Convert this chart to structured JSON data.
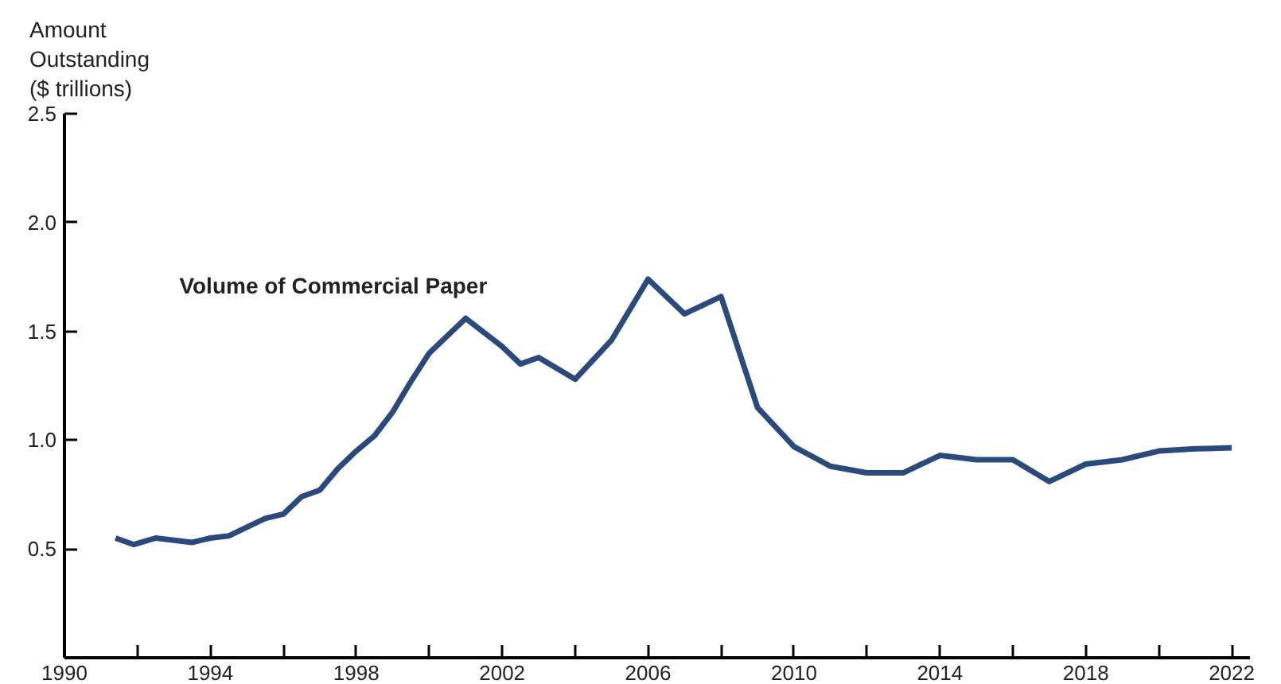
{
  "chart_data": {
    "type": "line",
    "ylabel": "Amount\nOutstanding\n($ trillions)",
    "x": [
      1991.4,
      1991.9,
      1992.5,
      1993.5,
      1994.0,
      1994.5,
      1995.0,
      1995.5,
      1996.0,
      1996.5,
      1997.0,
      1997.5,
      1998.0,
      1998.5,
      1999.0,
      1999.5,
      2000.0,
      2001.0,
      2002.0,
      2002.5,
      2003.0,
      2004.0,
      2005.0,
      2006.0,
      2007.0,
      2008.0,
      2009.0,
      2010.0,
      2011.0,
      2012.0,
      2013.0,
      2014.0,
      2015.0,
      2016.0,
      2017.0,
      2018.0,
      2019.0,
      2020.0,
      2021.0,
      2022.0
    ],
    "series": [
      {
        "name": "Volume of Commercial Paper",
        "color": "#2b4a7c",
        "values": [
          0.55,
          0.52,
          0.55,
          0.53,
          0.55,
          0.56,
          0.6,
          0.64,
          0.66,
          0.74,
          0.77,
          0.87,
          0.95,
          1.02,
          1.13,
          1.27,
          1.4,
          1.56,
          1.43,
          1.35,
          1.38,
          1.28,
          1.46,
          1.74,
          1.58,
          1.66,
          1.15,
          0.97,
          0.88,
          0.85,
          0.85,
          0.93,
          0.91,
          0.91,
          0.81,
          0.89,
          0.91,
          0.95,
          0.96,
          0.965
        ]
      }
    ],
    "xlim": [
      1990,
      2022.5
    ],
    "ylim": [
      0,
      2.5
    ],
    "xticks": [
      1990,
      {
        "value": 1992,
        "label": null
      },
      1994,
      {
        "value": 1996,
        "label": null
      },
      1998,
      {
        "value": 2000,
        "label": null
      },
      2002,
      {
        "value": 2004,
        "label": null
      },
      2006,
      {
        "value": 2008,
        "label": null
      },
      2010,
      {
        "value": 2012,
        "label": null
      },
      2014,
      {
        "value": 2016,
        "label": null
      },
      2018,
      {
        "value": 2020,
        "label": null
      },
      2022
    ],
    "yticks": [
      {
        "value": 0.5,
        "label": "0.5"
      },
      {
        "value": 1.0,
        "label": "1.0"
      },
      {
        "value": 1.5,
        "label": "1.5"
      },
      {
        "value": 2.0,
        "label": "2.0"
      },
      {
        "value": 2.5,
        "label": "2.5"
      }
    ],
    "grid": false,
    "legend": false,
    "marker": "none",
    "line_style": "solid"
  }
}
